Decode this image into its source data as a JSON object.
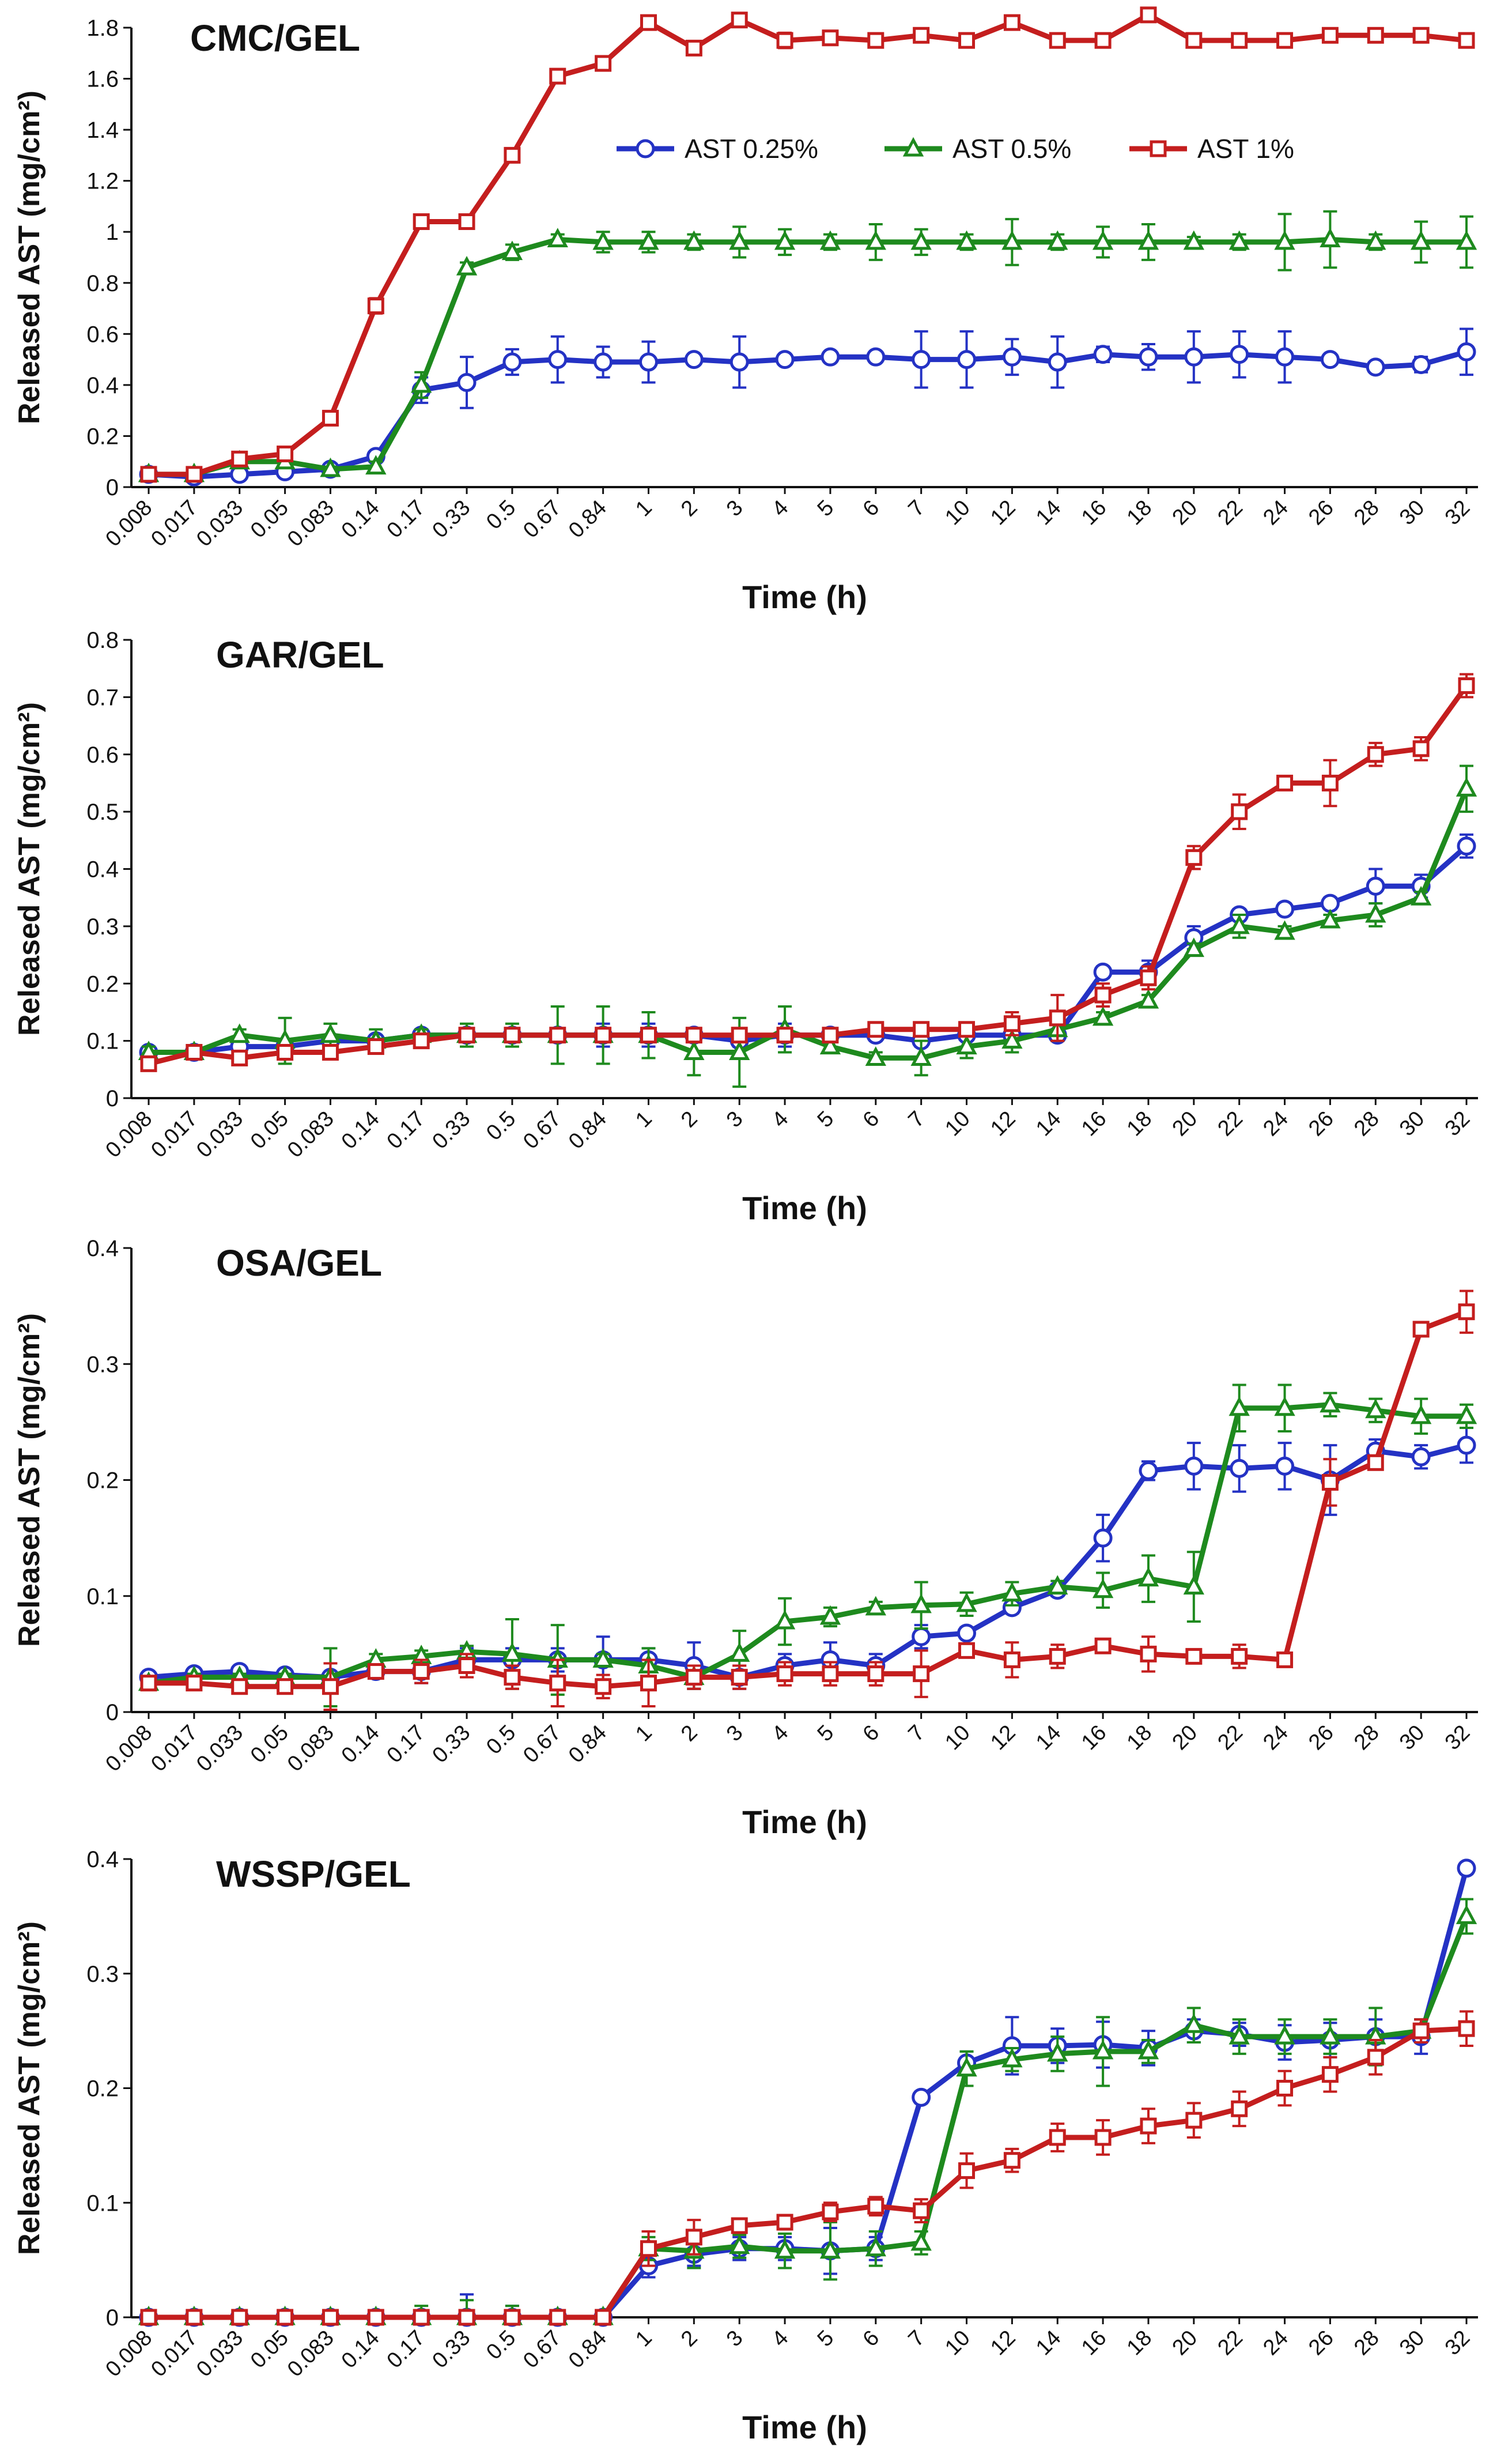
{
  "colors": {
    "AST 0.25%": "#2432c4",
    "AST 0.5%": "#1e8a1e",
    "AST 1%": "#c41e1e"
  },
  "chart_data": [
    {
      "type": "line",
      "title": "CMC/GEL",
      "xlabel": "Time (h)",
      "ylabel": "Released AST (mg/cm²)",
      "categories": [
        "0.008",
        "0.017",
        "0.033",
        "0.05",
        "0.083",
        "0.14",
        "0.17",
        "0.33",
        "0.5",
        "0.67",
        "0.84",
        "1",
        "2",
        "3",
        "4",
        "5",
        "6",
        "7",
        "10",
        "12",
        "14",
        "16",
        "18",
        "20",
        "22",
        "24",
        "26",
        "28",
        "30",
        "32"
      ],
      "ylim": [
        0,
        1.8
      ],
      "yticks": [
        "0",
        "0.2",
        "0.4",
        "0.6",
        "0.8",
        "1",
        "1.2",
        "1.4",
        "1.6",
        "1.8"
      ],
      "legend": "top-right",
      "series": [
        {
          "name": "AST 0.25%",
          "marker": "circle",
          "values": [
            0.05,
            0.04,
            0.05,
            0.06,
            0.07,
            0.12,
            0.38,
            0.41,
            0.49,
            0.5,
            0.49,
            0.49,
            0.5,
            0.49,
            0.5,
            0.51,
            0.51,
            0.5,
            0.5,
            0.51,
            0.49,
            0.52,
            0.51,
            0.51,
            0.52,
            0.51,
            0.5,
            0.47,
            0.48,
            0.53
          ],
          "err": [
            0.01,
            0.01,
            0.01,
            0.01,
            0.01,
            0.02,
            0.05,
            0.1,
            0.05,
            0.09,
            0.06,
            0.08,
            0.02,
            0.1,
            0.02,
            0.02,
            0.02,
            0.11,
            0.11,
            0.07,
            0.1,
            0.03,
            0.05,
            0.1,
            0.09,
            0.1,
            0.02,
            0.02,
            0.03,
            0.09
          ]
        },
        {
          "name": "AST 0.5%",
          "marker": "triangle",
          "values": [
            0.05,
            0.05,
            0.1,
            0.1,
            0.07,
            0.08,
            0.4,
            0.86,
            0.92,
            0.97,
            0.96,
            0.96,
            0.96,
            0.96,
            0.96,
            0.96,
            0.96,
            0.96,
            0.96,
            0.96,
            0.96,
            0.96,
            0.96,
            0.96,
            0.96,
            0.96,
            0.97,
            0.96,
            0.96,
            0.96
          ],
          "err": [
            0.01,
            0.01,
            0.02,
            0.02,
            0.01,
            0.02,
            0.05,
            0.02,
            0.03,
            0.02,
            0.04,
            0.04,
            0.03,
            0.06,
            0.05,
            0.03,
            0.07,
            0.05,
            0.03,
            0.09,
            0.03,
            0.06,
            0.07,
            0.02,
            0.03,
            0.11,
            0.11,
            0.03,
            0.08,
            0.1
          ]
        },
        {
          "name": "AST 1%",
          "marker": "square",
          "values": [
            0.05,
            0.05,
            0.11,
            0.13,
            0.27,
            0.71,
            1.04,
            1.04,
            1.3,
            1.61,
            1.66,
            1.82,
            1.72,
            1.83,
            1.75,
            1.76,
            1.75,
            1.77,
            1.75,
            1.82,
            1.75,
            1.75,
            1.85,
            1.75,
            1.75,
            1.75,
            1.77,
            1.77,
            1.77,
            1.75
          ],
          "err": [
            0.01,
            0.01,
            0.02,
            0.02,
            0.02,
            0.03,
            0.02,
            0.02,
            0.02,
            0.02,
            0.02,
            0.02,
            0.02,
            0.02,
            0.03,
            0.02,
            0.02,
            0.02,
            0.02,
            0.02,
            0.02,
            0.02,
            0.02,
            0.02,
            0.02,
            0.02,
            0.02,
            0.02,
            0.02,
            0.02
          ]
        }
      ]
    },
    {
      "type": "line",
      "title": "GAR/GEL",
      "xlabel": "Time (h)",
      "ylabel": "Released AST (mg/cm²)",
      "categories": [
        "0.008",
        "0.017",
        "0.033",
        "0.05",
        "0.083",
        "0.14",
        "0.17",
        "0.33",
        "0.5",
        "0.67",
        "0.84",
        "1",
        "2",
        "3",
        "4",
        "5",
        "6",
        "7",
        "10",
        "12",
        "14",
        "16",
        "18",
        "20",
        "22",
        "24",
        "26",
        "28",
        "30",
        "32"
      ],
      "ylim": [
        0,
        0.8
      ],
      "yticks": [
        "0",
        "0.1",
        "0.2",
        "0.3",
        "0.4",
        "0.5",
        "0.6",
        "0.7",
        "0.8"
      ],
      "series": [
        {
          "name": "AST 0.25%",
          "marker": "circle",
          "values": [
            0.08,
            0.08,
            0.09,
            0.09,
            0.1,
            0.1,
            0.11,
            0.11,
            0.11,
            0.11,
            0.11,
            0.11,
            0.11,
            0.1,
            0.11,
            0.11,
            0.11,
            0.1,
            0.11,
            0.11,
            0.11,
            0.22,
            0.22,
            0.28,
            0.32,
            0.33,
            0.34,
            0.37,
            0.37,
            0.44
          ],
          "err": [
            0.01,
            0.01,
            0.01,
            0.01,
            0.01,
            0.01,
            0.01,
            0.01,
            0.01,
            0.01,
            0.02,
            0.02,
            0.01,
            0.01,
            0.02,
            0.01,
            0.01,
            0.01,
            0.02,
            0.02,
            0.01,
            0.01,
            0.02,
            0.02,
            0.01,
            0.01,
            0.01,
            0.03,
            0.02,
            0.02
          ]
        },
        {
          "name": "AST 0.5%",
          "marker": "triangle",
          "values": [
            0.08,
            0.08,
            0.11,
            0.1,
            0.11,
            0.1,
            0.11,
            0.11,
            0.11,
            0.11,
            0.11,
            0.11,
            0.08,
            0.08,
            0.12,
            0.09,
            0.07,
            0.07,
            0.09,
            0.1,
            0.12,
            0.14,
            0.17,
            0.26,
            0.3,
            0.29,
            0.31,
            0.32,
            0.35,
            0.54
          ],
          "err": [
            0.01,
            0.01,
            0.01,
            0.04,
            0.02,
            0.02,
            0.01,
            0.02,
            0.02,
            0.05,
            0.05,
            0.04,
            0.04,
            0.06,
            0.04,
            0.01,
            0.01,
            0.03,
            0.02,
            0.02,
            0.02,
            0.01,
            0.01,
            0.01,
            0.02,
            0.01,
            0.01,
            0.02,
            0.01,
            0.04
          ]
        },
        {
          "name": "AST 1%",
          "marker": "square",
          "values": [
            0.06,
            0.08,
            0.07,
            0.08,
            0.08,
            0.09,
            0.1,
            0.11,
            0.11,
            0.11,
            0.11,
            0.11,
            0.11,
            0.11,
            0.11,
            0.11,
            0.12,
            0.12,
            0.12,
            0.13,
            0.14,
            0.18,
            0.21,
            0.42,
            0.5,
            0.55,
            0.55,
            0.6,
            0.61,
            0.72
          ],
          "err": [
            0.01,
            0.01,
            0.01,
            0.01,
            0.01,
            0.01,
            0.01,
            0.01,
            0.01,
            0.01,
            0.01,
            0.01,
            0.01,
            0.01,
            0.01,
            0.01,
            0.01,
            0.01,
            0.01,
            0.02,
            0.04,
            0.02,
            0.02,
            0.02,
            0.03,
            0.01,
            0.04,
            0.02,
            0.02,
            0.02
          ]
        }
      ]
    },
    {
      "type": "line",
      "title": "OSA/GEL",
      "xlabel": "Time (h)",
      "ylabel": "Released AST (mg/cm²)",
      "categories": [
        "0.008",
        "0.017",
        "0.033",
        "0.05",
        "0.083",
        "0.14",
        "0.17",
        "0.33",
        "0.5",
        "0.67",
        "0.84",
        "1",
        "2",
        "3",
        "4",
        "5",
        "6",
        "7",
        "10",
        "12",
        "14",
        "16",
        "18",
        "20",
        "22",
        "24",
        "26",
        "28",
        "30",
        "32"
      ],
      "ylim": [
        0,
        0.4
      ],
      "yticks": [
        "0",
        "0.1",
        "0.2",
        "0.3",
        "0.4"
      ],
      "series": [
        {
          "name": "AST 0.25%",
          "marker": "circle",
          "values": [
            0.03,
            0.033,
            0.035,
            0.032,
            0.03,
            0.035,
            0.035,
            0.045,
            0.045,
            0.045,
            0.045,
            0.045,
            0.04,
            0.03,
            0.04,
            0.045,
            0.04,
            0.065,
            0.068,
            0.09,
            0.105,
            0.15,
            0.208,
            0.212,
            0.21,
            0.212,
            0.2,
            0.225,
            0.22,
            0.23
          ],
          "err": [
            0.003,
            0.003,
            0.003,
            0.003,
            0.003,
            0.005,
            0.01,
            0.01,
            0.01,
            0.01,
            0.02,
            0.01,
            0.02,
            0.01,
            0.01,
            0.015,
            0.01,
            0.01,
            0.005,
            0.005,
            0.005,
            0.02,
            0.008,
            0.02,
            0.02,
            0.02,
            0.03,
            0.01,
            0.01,
            0.015
          ]
        },
        {
          "name": "AST 0.5%",
          "marker": "triangle",
          "values": [
            0.025,
            0.03,
            0.03,
            0.03,
            0.03,
            0.045,
            0.048,
            0.052,
            0.05,
            0.045,
            0.045,
            0.04,
            0.03,
            0.05,
            0.078,
            0.082,
            0.09,
            0.092,
            0.093,
            0.102,
            0.108,
            0.105,
            0.115,
            0.108,
            0.262,
            0.262,
            0.265,
            0.26,
            0.255,
            0.255
          ],
          "err": [
            0.003,
            0.003,
            0.003,
            0.003,
            0.025,
            0.005,
            0.005,
            0.005,
            0.03,
            0.03,
            0.005,
            0.015,
            0.01,
            0.02,
            0.02,
            0.008,
            0.005,
            0.02,
            0.01,
            0.01,
            0.005,
            0.015,
            0.02,
            0.03,
            0.02,
            0.02,
            0.01,
            0.01,
            0.015,
            0.01
          ]
        },
        {
          "name": "AST 1%",
          "marker": "square",
          "values": [
            0.025,
            0.025,
            0.022,
            0.022,
            0.022,
            0.035,
            0.035,
            0.04,
            0.03,
            0.025,
            0.022,
            0.025,
            0.03,
            0.03,
            0.033,
            0.033,
            0.033,
            0.033,
            0.053,
            0.045,
            0.048,
            0.057,
            0.05,
            0.048,
            0.048,
            0.045,
            0.198,
            0.215,
            0.33,
            0.345
          ],
          "err": [
            0.003,
            0.003,
            0.003,
            0.003,
            0.02,
            0.005,
            0.01,
            0.01,
            0.01,
            0.02,
            0.01,
            0.02,
            0.01,
            0.01,
            0.01,
            0.01,
            0.01,
            0.02,
            0.005,
            0.015,
            0.01,
            0.005,
            0.015,
            0.005,
            0.01,
            0.005,
            0.02,
            0.005,
            0.005,
            0.018
          ]
        }
      ]
    },
    {
      "type": "line",
      "title": "WSSP/GEL",
      "xlabel": "Time (h)",
      "ylabel": "Released AST (mg/cm²)",
      "categories": [
        "0.008",
        "0.017",
        "0.033",
        "0.05",
        "0.083",
        "0.14",
        "0.17",
        "0.33",
        "0.5",
        "0.67",
        "0.84",
        "1",
        "2",
        "3",
        "4",
        "5",
        "6",
        "7",
        "10",
        "12",
        "14",
        "16",
        "18",
        "20",
        "22",
        "24",
        "26",
        "28",
        "30",
        "32"
      ],
      "ylim": [
        0,
        0.4
      ],
      "yticks": [
        "0",
        "0.1",
        "0.2",
        "0.3",
        "0.4"
      ],
      "series": [
        {
          "name": "AST 0.25%",
          "marker": "circle",
          "values": [
            0,
            0,
            0,
            0,
            0,
            0,
            0,
            0,
            0,
            0,
            0,
            0.045,
            0.055,
            0.06,
            0.06,
            0.058,
            0.06,
            0.192,
            0.222,
            0.237,
            0.237,
            0.238,
            0.235,
            0.25,
            0.247,
            0.24,
            0.242,
            0.245,
            0.245,
            0.392
          ],
          "err": [
            0,
            0,
            0,
            0,
            0,
            0,
            0,
            0.02,
            0.01,
            0.005,
            0,
            0.01,
            0.01,
            0.01,
            0.01,
            0.02,
            0.01,
            0.005,
            0.01,
            0.025,
            0.015,
            0.02,
            0.015,
            0.01,
            0.01,
            0.015,
            0.015,
            0.015,
            0.015,
            0.005
          ]
        },
        {
          "name": "AST 0.5%",
          "marker": "triangle",
          "values": [
            0,
            0,
            0,
            0,
            0,
            0,
            0,
            0,
            0,
            0,
            0,
            0.06,
            0.058,
            0.062,
            0.058,
            0.058,
            0.06,
            0.065,
            0.217,
            0.225,
            0.23,
            0.232,
            0.232,
            0.255,
            0.245,
            0.245,
            0.245,
            0.245,
            0.25,
            0.35
          ],
          "err": [
            0,
            0,
            0,
            0,
            0,
            0,
            0.01,
            0.015,
            0.01,
            0.005,
            0,
            0.01,
            0.015,
            0.01,
            0.015,
            0.025,
            0.015,
            0.01,
            0.015,
            0.01,
            0.015,
            0.03,
            0.01,
            0.015,
            0.015,
            0.015,
            0.015,
            0.025,
            0.01,
            0.015
          ]
        },
        {
          "name": "AST 1%",
          "marker": "square",
          "values": [
            0,
            0,
            0,
            0,
            0,
            0,
            0,
            0,
            0,
            0,
            0,
            0.06,
            0.07,
            0.08,
            0.083,
            0.092,
            0.097,
            0.093,
            0.128,
            0.137,
            0.157,
            0.157,
            0.167,
            0.172,
            0.182,
            0.2,
            0.212,
            0.227,
            0.25,
            0.252
          ],
          "err": [
            0,
            0,
            0,
            0,
            0,
            0,
            0,
            0.005,
            0.005,
            0,
            0,
            0.015,
            0.015,
            0.005,
            0.005,
            0.008,
            0.008,
            0.01,
            0.015,
            0.01,
            0.012,
            0.015,
            0.015,
            0.015,
            0.015,
            0.015,
            0.015,
            0.015,
            0.01,
            0.015
          ]
        }
      ]
    }
  ]
}
